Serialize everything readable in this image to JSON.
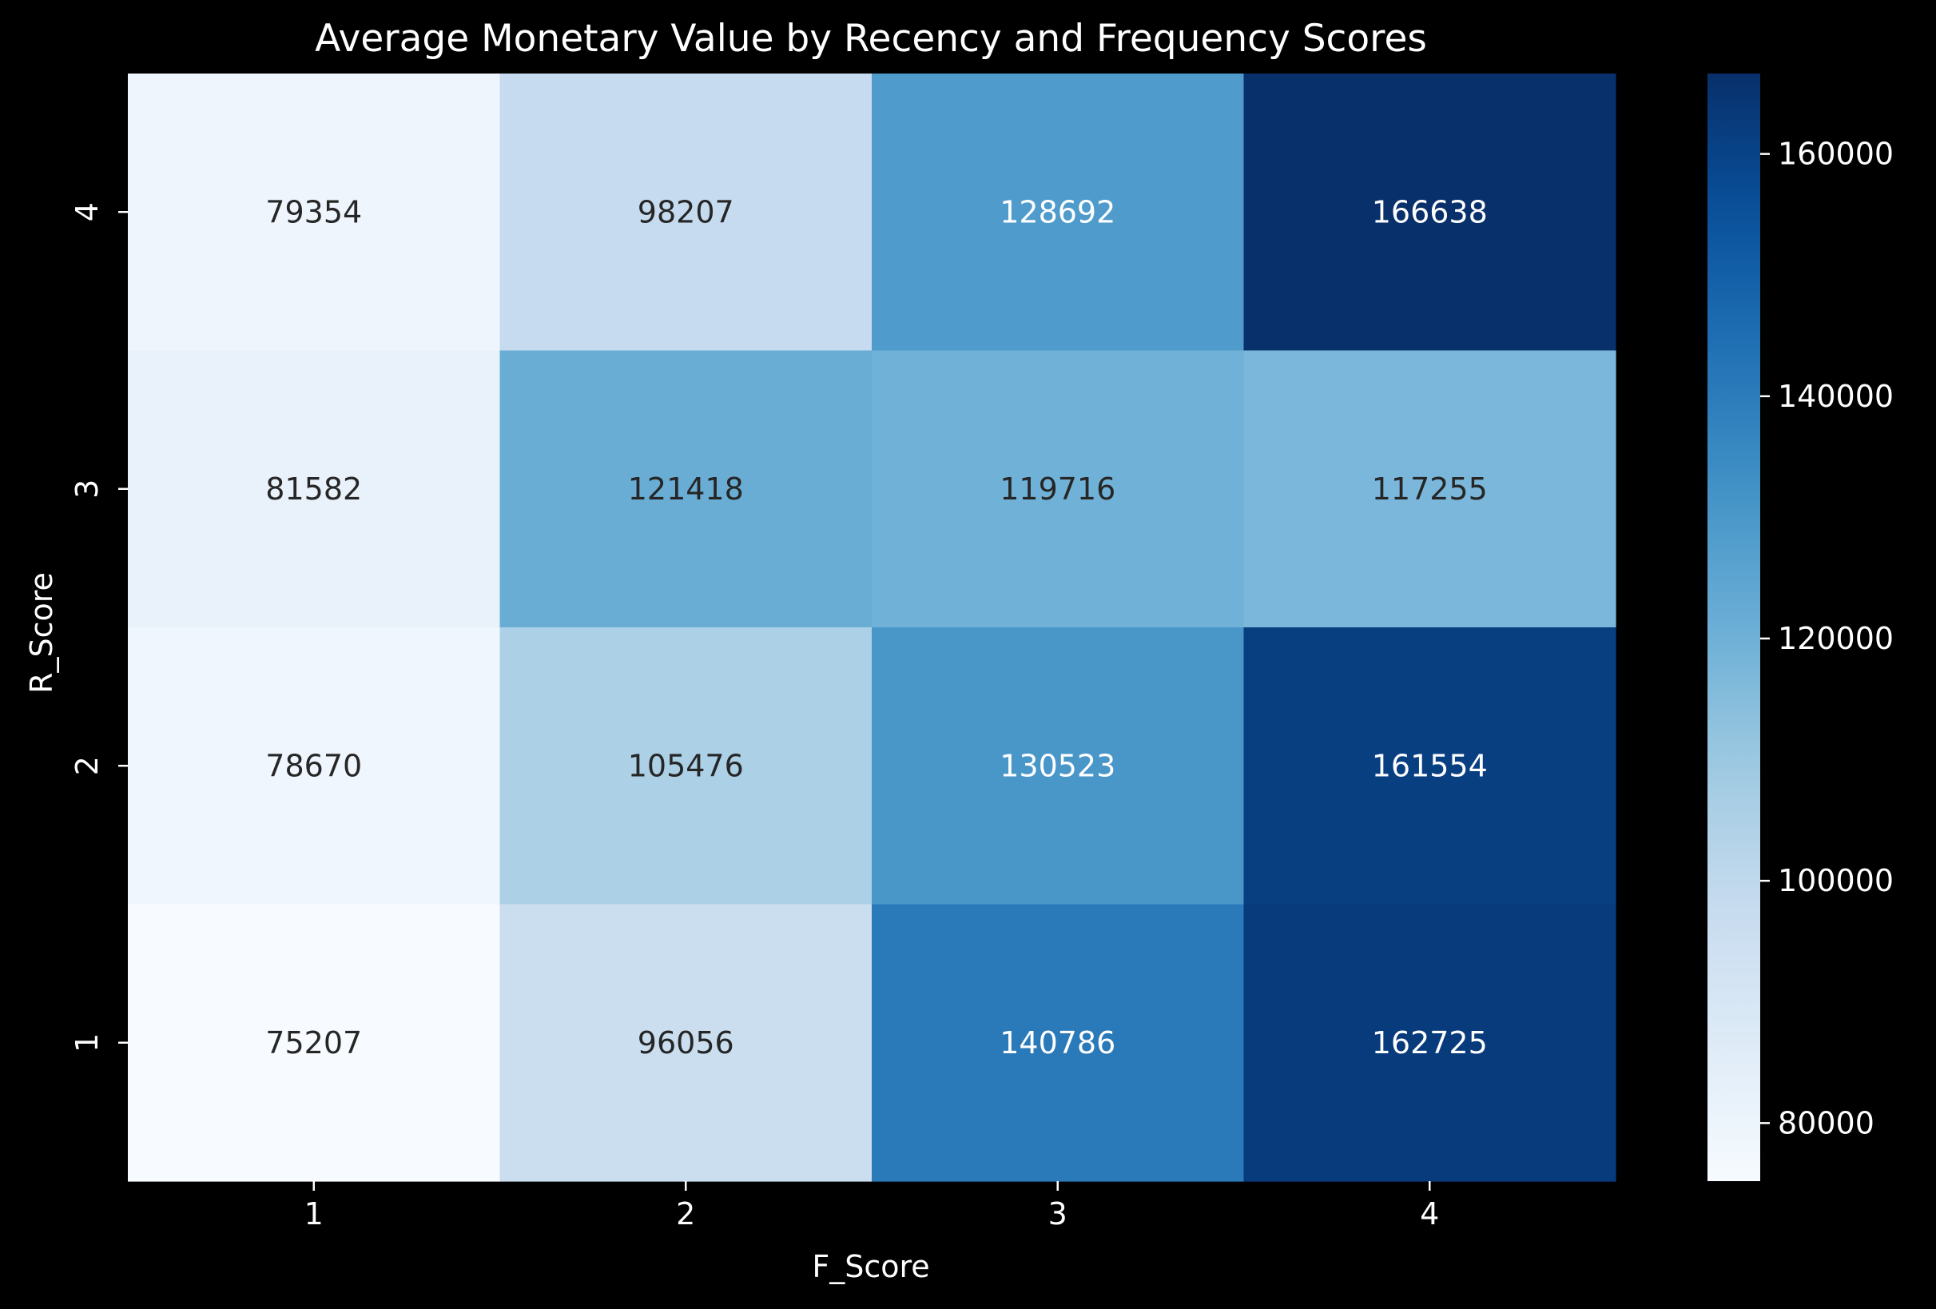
{
  "chart_data": {
    "type": "heatmap",
    "title": "Average Monetary Value by Recency and Frequency Scores",
    "xlabel": "F_Score",
    "ylabel": "R_Score",
    "x_categories": [
      "1",
      "2",
      "3",
      "4"
    ],
    "y_categories": [
      "4",
      "3",
      "2",
      "1"
    ],
    "values": [
      [
        79354,
        98207,
        128692,
        166638
      ],
      [
        81582,
        121418,
        119716,
        117255
      ],
      [
        78670,
        105476,
        130523,
        161554
      ],
      [
        75207,
        96056,
        140786,
        162725
      ]
    ],
    "colormap": "Blues",
    "colorbar": {
      "min": 75207,
      "max": 166638,
      "ticks": [
        80000,
        100000,
        120000,
        140000,
        160000
      ],
      "tick_labels": [
        "80000",
        "100000",
        "120000",
        "140000",
        "160000"
      ]
    },
    "colors": {
      "background": "#000000",
      "text": "#ffffff",
      "dark_annotation": "#262626"
    }
  }
}
